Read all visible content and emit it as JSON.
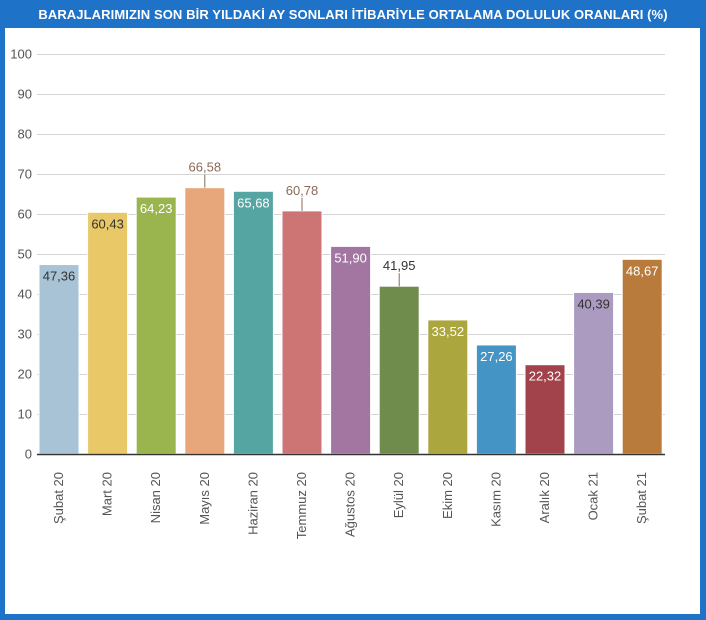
{
  "chart_data": {
    "type": "bar",
    "title": "BARAJLARIMIZIN SON BİR YILDAKİ AY SONLARI İTİBARİYLE ORTALAMA DOLULUK ORANLARI (%)",
    "categories": [
      "Şubat 20",
      "Mart 20",
      "Nisan 20",
      "Mayıs 20",
      "Haziran 20",
      "Temmuz 20",
      "Ağustos 20",
      "Eylül 20",
      "Ekim 20",
      "Kasım 20",
      "Aralık 20",
      "Ocak 21",
      "Şubat 21"
    ],
    "values": [
      47.36,
      60.43,
      64.23,
      66.58,
      65.68,
      60.78,
      51.9,
      41.95,
      33.52,
      27.26,
      22.32,
      40.39,
      48.67
    ],
    "value_labels": [
      "47,36",
      "60,43",
      "64,23",
      "66,58",
      "65,68",
      "60,78",
      "51,90",
      "41,95",
      "33,52",
      "27,26",
      "22,32",
      "40,39",
      "48,67"
    ],
    "label_position": [
      "inside",
      "inside",
      "inside",
      "outside",
      "inside",
      "outside",
      "inside",
      "outside",
      "inside",
      "inside",
      "inside",
      "inside",
      "inside"
    ],
    "colors": [
      "#a7c3d5",
      "#e8c867",
      "#9ab54d",
      "#e8a67b",
      "#55a5a3",
      "#cd7575",
      "#a375a1",
      "#6f8c4d",
      "#aba63e",
      "#4495c6",
      "#a2424a",
      "#ab9bc1",
      "#b87b3c"
    ],
    "label_colors": [
      "#333333",
      "#333333",
      "#ffffff",
      "#8a6a55",
      "#ffffff",
      "#8a6a55",
      "#ffffff",
      "#333333",
      "#ffffff",
      "#ffffff",
      "#ffffff",
      "#333333",
      "#ffffff"
    ],
    "ylim": [
      0,
      100
    ],
    "yticks": [
      "0",
      "10",
      "20",
      "30",
      "40",
      "50",
      "60",
      "70",
      "80",
      "90",
      "100"
    ],
    "grid": true,
    "xlabel": "",
    "ylabel": ""
  }
}
